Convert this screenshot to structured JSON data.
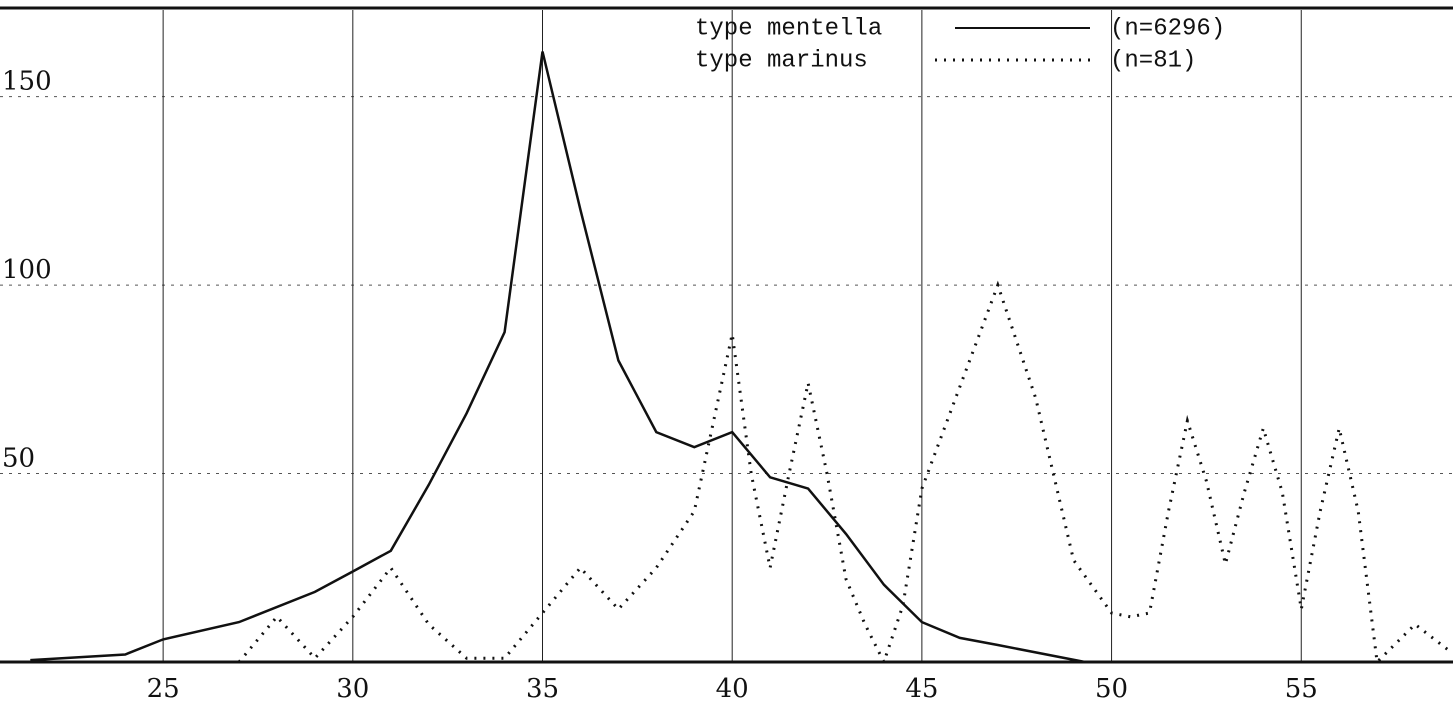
{
  "chart_data": {
    "type": "line",
    "xlim": [
      20.7,
      59
    ],
    "ylim": [
      0,
      173
    ],
    "xticks": [
      25,
      30,
      35,
      40,
      45,
      50,
      55
    ],
    "yticks": [
      50,
      100,
      150
    ],
    "grid": true,
    "series": [
      {
        "name": "type mentella",
        "n_label": "(n=6296)",
        "color": "#111111",
        "style": "solid",
        "x": [
          21.5,
          24,
          25,
          27,
          29,
          30,
          31,
          32,
          33,
          34,
          35,
          36,
          37,
          38,
          39,
          40,
          41,
          42,
          43,
          44,
          45,
          46,
          47,
          49.3
        ],
        "values": [
          0.5,
          2,
          6,
          10.6,
          18.6,
          24,
          29.5,
          47,
          66,
          87.5,
          162,
          120,
          80,
          61,
          57,
          61,
          49,
          46,
          34,
          20.5,
          10.6,
          6.4,
          4.5,
          0
        ]
      },
      {
        "name": "type marinus",
        "n_label": "(n=81)",
        "color": "#111111",
        "style": "cross",
        "x": [
          27,
          28,
          29,
          30,
          31,
          32,
          33,
          34,
          35,
          36,
          37,
          38,
          39,
          40,
          40.5,
          41,
          41.5,
          42,
          42.5,
          43,
          43.5,
          44,
          44.5,
          45,
          46,
          47,
          48,
          49,
          50,
          50.5,
          51,
          51.5,
          52,
          52.5,
          53,
          53.5,
          54,
          54.5,
          55,
          55.5,
          56,
          56.5,
          57,
          57.5,
          58,
          58.9
        ],
        "values": [
          0,
          12,
          1,
          12,
          25,
          10,
          1,
          1,
          13,
          25,
          14,
          25,
          40,
          87,
          50,
          25,
          50,
          74,
          50,
          22,
          10,
          0,
          15,
          46,
          73,
          100,
          70,
          27,
          13,
          12,
          13,
          40,
          64,
          48,
          26,
          45,
          62,
          45,
          14,
          40,
          62,
          40,
          0,
          5,
          10,
          3
        ]
      }
    ]
  }
}
